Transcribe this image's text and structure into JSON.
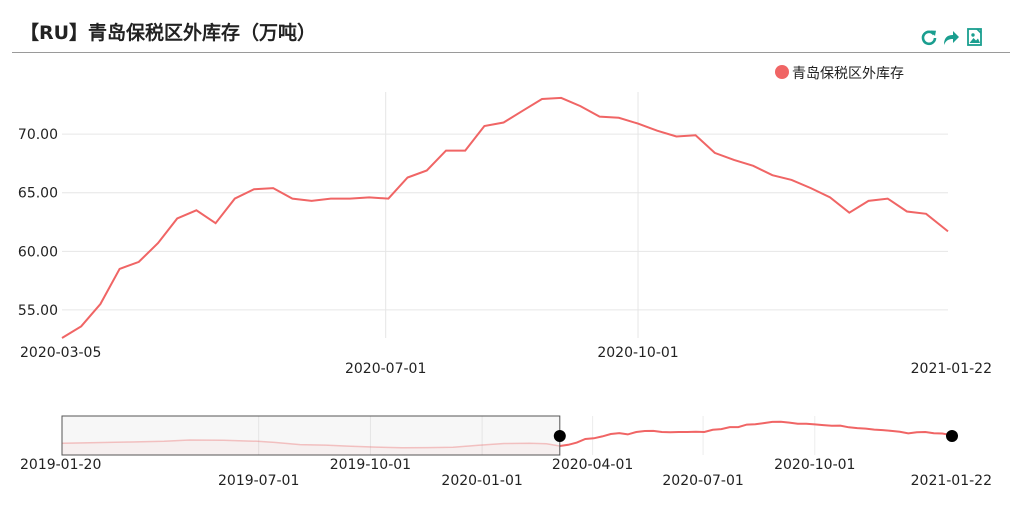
{
  "header": {
    "title": "【RU】青岛保税区外库存（万吨）",
    "tools": [
      "refresh-icon",
      "share-icon",
      "save-image-icon"
    ],
    "accent": "#1a9e8f"
  },
  "chart_data": {
    "type": "line",
    "series": [
      {
        "name": "青岛保税区外库存",
        "color": "#f06565",
        "points": [
          [
            "2020-03-05",
            52.6
          ],
          [
            "2020-03-12",
            53.6
          ],
          [
            "2020-03-19",
            55.5
          ],
          [
            "2020-03-26",
            58.5
          ],
          [
            "2020-04-02",
            59.1
          ],
          [
            "2020-04-09",
            60.7
          ],
          [
            "2020-04-16",
            62.8
          ],
          [
            "2020-04-23",
            63.5
          ],
          [
            "2020-04-30",
            62.4
          ],
          [
            "2020-05-07",
            64.5
          ],
          [
            "2020-05-14",
            65.3
          ],
          [
            "2020-05-21",
            65.4
          ],
          [
            "2020-05-28",
            64.5
          ],
          [
            "2020-06-04",
            64.3
          ],
          [
            "2020-06-11",
            64.5
          ],
          [
            "2020-06-18",
            64.5
          ],
          [
            "2020-06-25",
            64.6
          ],
          [
            "2020-07-02",
            64.5
          ],
          [
            "2020-07-09",
            66.3
          ],
          [
            "2020-07-16",
            66.9
          ],
          [
            "2020-07-23",
            68.6
          ],
          [
            "2020-07-30",
            68.6
          ],
          [
            "2020-08-06",
            70.7
          ],
          [
            "2020-08-13",
            71.0
          ],
          [
            "2020-08-20",
            72.0
          ],
          [
            "2020-08-27",
            73.0
          ],
          [
            "2020-09-03",
            73.1
          ],
          [
            "2020-09-10",
            72.4
          ],
          [
            "2020-09-17",
            71.5
          ],
          [
            "2020-09-24",
            71.4
          ],
          [
            "2020-10-01",
            70.9
          ],
          [
            "2020-10-08",
            70.3
          ],
          [
            "2020-10-15",
            69.8
          ],
          [
            "2020-10-22",
            69.9
          ],
          [
            "2020-10-29",
            68.4
          ],
          [
            "2020-11-05",
            67.8
          ],
          [
            "2020-11-12",
            67.3
          ],
          [
            "2020-11-19",
            66.5
          ],
          [
            "2020-11-26",
            66.1
          ],
          [
            "2020-12-03",
            65.4
          ],
          [
            "2020-12-10",
            64.6
          ],
          [
            "2020-12-17",
            63.3
          ],
          [
            "2020-12-24",
            64.3
          ],
          [
            "2020-12-31",
            64.5
          ],
          [
            "2021-01-07",
            63.4
          ],
          [
            "2021-01-14",
            63.2
          ],
          [
            "2021-01-22",
            61.7
          ]
        ]
      }
    ],
    "overview_early": [
      [
        "2019-01-20",
        55.0
      ],
      [
        "2019-02-17",
        55.5
      ],
      [
        "2019-03-17",
        56.0
      ],
      [
        "2019-04-14",
        56.6
      ],
      [
        "2019-05-05",
        57.7
      ],
      [
        "2019-06-02",
        57.5
      ],
      [
        "2019-06-30",
        56.6
      ],
      [
        "2019-07-14",
        55.7
      ],
      [
        "2019-08-04",
        53.8
      ],
      [
        "2019-08-25",
        53.4
      ],
      [
        "2019-09-15",
        52.4
      ],
      [
        "2019-10-06",
        51.7
      ],
      [
        "2019-10-27",
        51.1
      ],
      [
        "2019-11-17",
        51.3
      ],
      [
        "2019-12-08",
        51.6
      ],
      [
        "2019-12-29",
        53.2
      ],
      [
        "2020-01-19",
        54.7
      ],
      [
        "2020-02-09",
        54.9
      ],
      [
        "2020-02-23",
        54.6
      ],
      [
        "2020-03-05",
        52.6
      ]
    ],
    "x_ticks_main": [
      "2020-03-05",
      "2020-07-01",
      "2020-10-01",
      "2021-01-22"
    ],
    "x_ticks_overview": [
      "2019-01-20",
      "2019-07-01",
      "2019-10-01",
      "2020-01-01",
      "2020-04-01",
      "2020-07-01",
      "2020-10-01",
      "2021-01-22"
    ],
    "y_ticks": [
      55,
      60,
      65,
      70
    ],
    "y_tick_labels": [
      "55.00",
      "60.00",
      "65.00",
      "70.00"
    ],
    "ylim": [
      52.6,
      73.6
    ],
    "xlim": [
      "2020-03-05",
      "2021-01-22"
    ],
    "overview_xlim": [
      "2019-01-20",
      "2021-01-22"
    ],
    "overview_ylim": [
      45,
      78
    ],
    "legend": {
      "position": "top-right",
      "label": "青岛保税区外库存"
    },
    "grid": true
  }
}
